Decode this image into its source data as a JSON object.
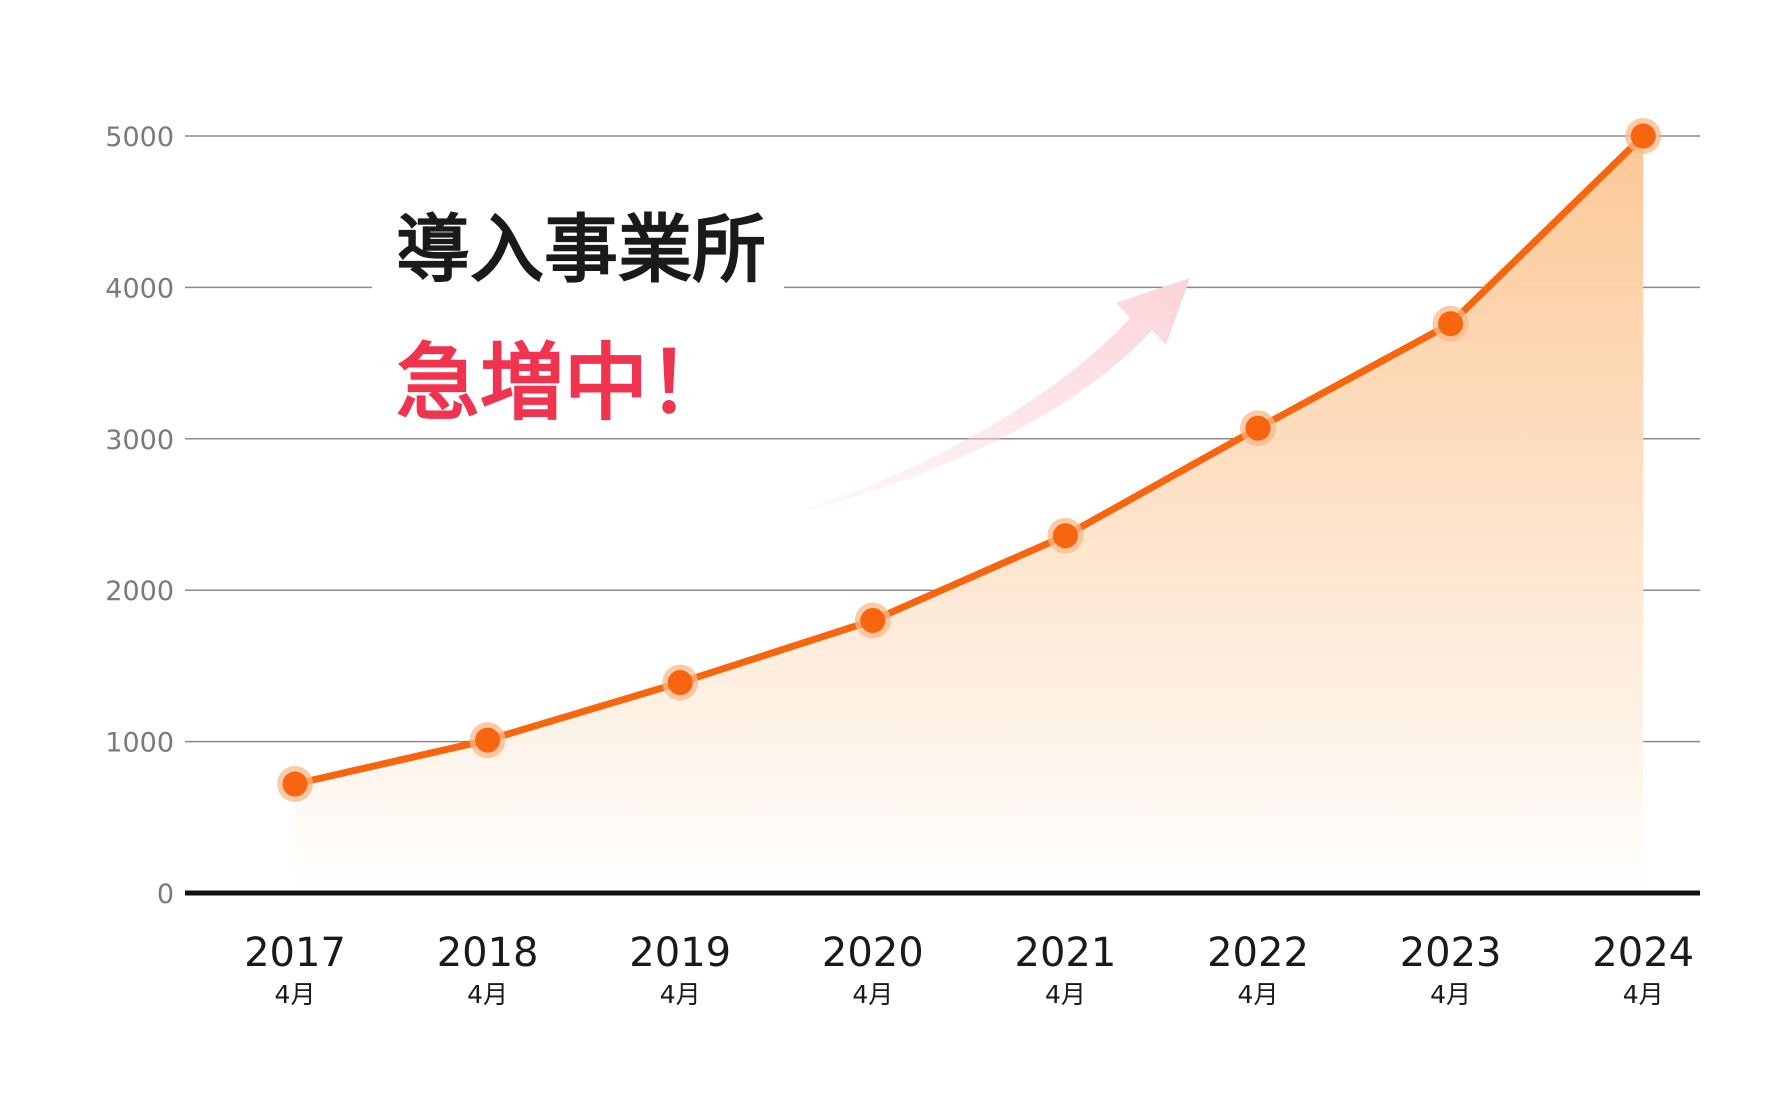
{
  "chart_data": {
    "type": "area",
    "categories": [
      "2017",
      "2018",
      "2019",
      "2020",
      "2021",
      "2022",
      "2023",
      "2024"
    ],
    "category_sublabel": "4月",
    "values": [
      720,
      1010,
      1390,
      1800,
      2360,
      3070,
      3760,
      5000
    ],
    "ylim": [
      0,
      5000
    ],
    "yticks": [
      0,
      1000,
      2000,
      3000,
      4000,
      5000
    ],
    "grid": true,
    "legend": "none",
    "annotation": {
      "line1": "導入事業所",
      "line2": "急増中！"
    },
    "colors": {
      "line": "#f8650f",
      "marker_halo": "#f9b88a",
      "area_top": "#fcc591",
      "area_bottom": "#ffffff",
      "grid": "#8a8a8a",
      "baseline": "#111111",
      "arrow": "#fbd4d8",
      "headline_black": "#1a1a1a",
      "headline_red": "#f0334f"
    }
  }
}
